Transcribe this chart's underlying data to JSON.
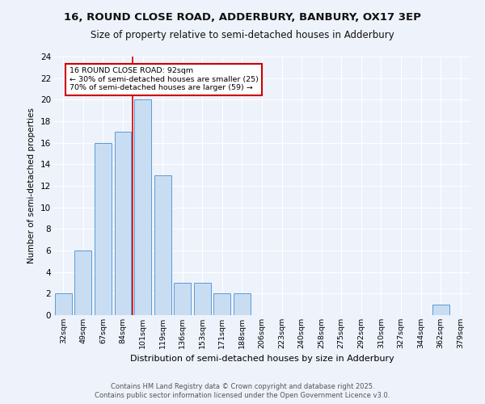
{
  "title1": "16, ROUND CLOSE ROAD, ADDERBURY, BANBURY, OX17 3EP",
  "title2": "Size of property relative to semi-detached houses in Adderbury",
  "xlabel": "Distribution of semi-detached houses by size in Adderbury",
  "ylabel": "Number of semi-detached properties",
  "categories": [
    "32sqm",
    "49sqm",
    "67sqm",
    "84sqm",
    "101sqm",
    "119sqm",
    "136sqm",
    "153sqm",
    "171sqm",
    "188sqm",
    "206sqm",
    "223sqm",
    "240sqm",
    "258sqm",
    "275sqm",
    "292sqm",
    "310sqm",
    "327sqm",
    "344sqm",
    "362sqm",
    "379sqm"
  ],
  "values": [
    2,
    6,
    16,
    17,
    20,
    13,
    3,
    3,
    2,
    2,
    0,
    0,
    0,
    0,
    0,
    0,
    0,
    0,
    0,
    1,
    0
  ],
  "bar_color": "#c9ddf2",
  "bar_edge_color": "#5b9bd5",
  "vline_x": 3.5,
  "vline_color": "#cc0000",
  "annotation_title": "16 ROUND CLOSE ROAD: 92sqm",
  "annotation_line1": "← 30% of semi-detached houses are smaller (25)",
  "annotation_line2": "70% of semi-detached houses are larger (59) →",
  "annotation_box_color": "#cc0000",
  "ylim": [
    0,
    24
  ],
  "yticks": [
    0,
    2,
    4,
    6,
    8,
    10,
    12,
    14,
    16,
    18,
    20,
    22,
    24
  ],
  "footer1": "Contains HM Land Registry data © Crown copyright and database right 2025.",
  "footer2": "Contains public sector information licensed under the Open Government Licence v3.0.",
  "bg_color": "#eef2fb",
  "grid_color": "#ffffff"
}
